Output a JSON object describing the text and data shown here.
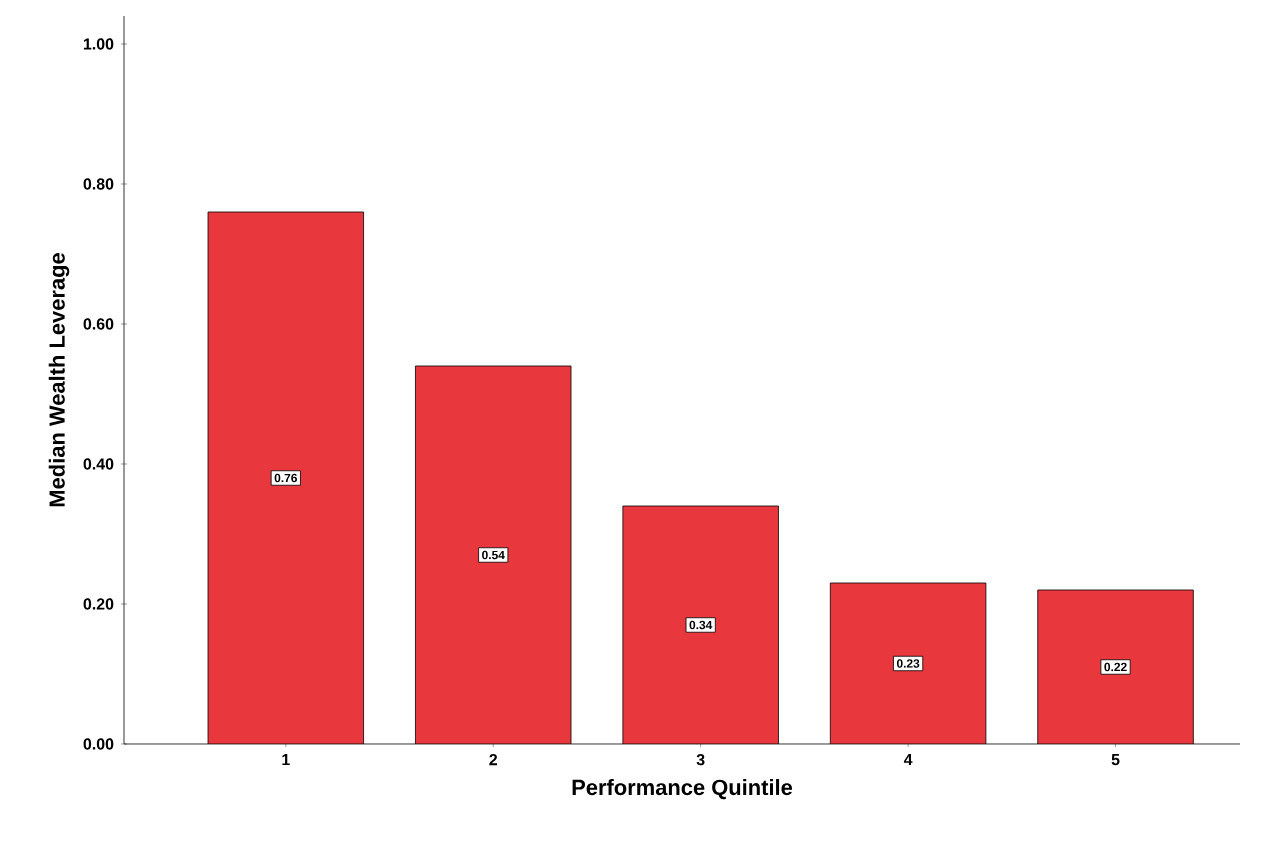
{
  "chart_data": {
    "type": "bar",
    "xlabel": "Performance Quintile",
    "ylabel": "Median Wealth Leverage",
    "categories": [
      "1",
      "2",
      "3",
      "4",
      "5"
    ],
    "values": [
      0.76,
      0.54,
      0.34,
      0.23,
      0.22
    ],
    "color": "#e8383d",
    "ylim": [
      0,
      1.04
    ],
    "yticks": [
      {
        "value": 0,
        "label": "0.00"
      },
      {
        "value": 0.2,
        "label": "0.20"
      },
      {
        "value": 0.4,
        "label": "0.40"
      },
      {
        "value": 0.6,
        "label": "0.60"
      },
      {
        "value": 0.8,
        "label": "0.80"
      },
      {
        "value": 1.0,
        "label": "1.00"
      }
    ],
    "data_labels": true
  }
}
